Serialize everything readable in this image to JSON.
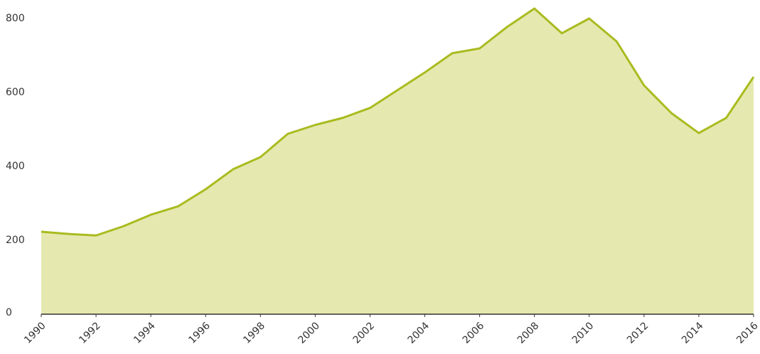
{
  "chart_data": {
    "type": "area",
    "x": [
      1990,
      1991,
      1992,
      1993,
      1994,
      1995,
      1996,
      1997,
      1998,
      1999,
      2000,
      2001,
      2002,
      2003,
      2004,
      2005,
      2006,
      2007,
      2008,
      2009,
      2010,
      2011,
      2012,
      2013,
      2014,
      2015,
      2016
    ],
    "series": [
      {
        "color": "#a9bb1f",
        "fill": "#e5e9b0",
        "values": [
          223,
          217,
          213,
          238,
          269,
          292,
          338,
          392,
          425,
          488,
          512,
          531,
          558,
          606,
          654,
          706,
          719,
          777,
          827,
          760,
          800,
          738,
          619,
          544,
          490,
          531,
          642
        ]
      }
    ],
    "xlim": [
      1990,
      2016
    ],
    "xticks": [
      1990,
      1992,
      1994,
      1996,
      1998,
      2000,
      2002,
      2004,
      2006,
      2008,
      2010,
      2012,
      2014,
      2016
    ],
    "ylim": [
      0,
      850
    ],
    "yticks": [
      0,
      200,
      400,
      600,
      800
    ],
    "grid": false
  }
}
